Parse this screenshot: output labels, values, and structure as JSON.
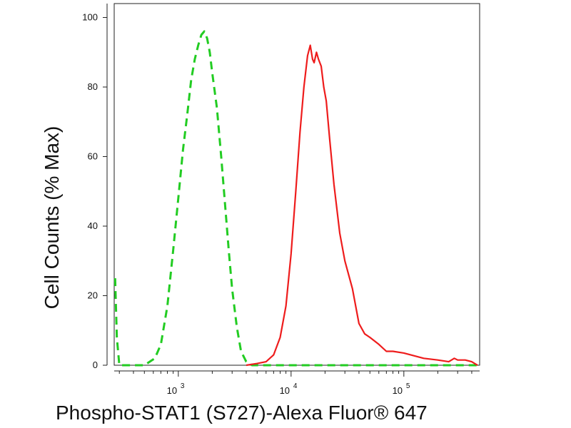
{
  "chart_data": {
    "type": "line",
    "xlabel": "Phospho-STAT1 (S727)-Alexa Fluor® 647",
    "ylabel": "Cell Counts (% Max)",
    "x_scale": "log",
    "xlim": [
      270,
      470000
    ],
    "ylim": [
      0,
      104
    ],
    "grid": false,
    "legend": "none",
    "y_ticks": [
      {
        "value": 0,
        "label": "0"
      },
      {
        "value": 20,
        "label": "20"
      },
      {
        "value": 40,
        "label": "40"
      },
      {
        "value": 60,
        "label": "60"
      },
      {
        "value": 80,
        "label": "80"
      },
      {
        "value": 100,
        "label": "100"
      }
    ],
    "x_ticks": [
      {
        "value": 1000,
        "base": "10",
        "exp": "3"
      },
      {
        "value": 10000,
        "base": "10",
        "exp": "4"
      },
      {
        "value": 100000,
        "base": "10",
        "exp": "5"
      }
    ],
    "series": [
      {
        "style": "dashed",
        "color": "#22cc22",
        "points": [
          [
            275,
            25
          ],
          [
            285,
            8
          ],
          [
            300,
            0
          ],
          [
            500,
            0
          ],
          [
            620,
            2
          ],
          [
            700,
            6
          ],
          [
            800,
            17
          ],
          [
            900,
            33
          ],
          [
            1000,
            48
          ],
          [
            1100,
            62
          ],
          [
            1200,
            72
          ],
          [
            1300,
            82
          ],
          [
            1400,
            88
          ],
          [
            1500,
            92
          ],
          [
            1600,
            95
          ],
          [
            1700,
            96
          ],
          [
            1800,
            94
          ],
          [
            1900,
            90
          ],
          [
            2000,
            84
          ],
          [
            2200,
            74
          ],
          [
            2400,
            60
          ],
          [
            2600,
            46
          ],
          [
            2800,
            33
          ],
          [
            3000,
            22
          ],
          [
            3300,
            11
          ],
          [
            3600,
            4
          ],
          [
            4000,
            1
          ],
          [
            4500,
            0
          ],
          [
            470000,
            0
          ]
        ]
      },
      {
        "style": "solid",
        "color": "#ee1c1c",
        "points": [
          [
            4000,
            0
          ],
          [
            5000,
            0.5
          ],
          [
            6000,
            1
          ],
          [
            7000,
            3
          ],
          [
            8000,
            8
          ],
          [
            9000,
            17
          ],
          [
            10000,
            32
          ],
          [
            11000,
            50
          ],
          [
            12000,
            67
          ],
          [
            13000,
            80
          ],
          [
            14000,
            89
          ],
          [
            14800,
            92
          ],
          [
            15500,
            88
          ],
          [
            16000,
            87
          ],
          [
            16800,
            90
          ],
          [
            17500,
            88
          ],
          [
            18500,
            86
          ],
          [
            19500,
            80
          ],
          [
            20500,
            76
          ],
          [
            22000,
            65
          ],
          [
            24000,
            52
          ],
          [
            27000,
            38
          ],
          [
            30000,
            30
          ],
          [
            35000,
            22
          ],
          [
            40000,
            12
          ],
          [
            45000,
            9
          ],
          [
            50000,
            8
          ],
          [
            60000,
            6
          ],
          [
            70000,
            4
          ],
          [
            80000,
            4
          ],
          [
            100000,
            3.5
          ],
          [
            150000,
            2
          ],
          [
            200000,
            1.5
          ],
          [
            250000,
            1
          ],
          [
            280000,
            2
          ],
          [
            300000,
            1.5
          ],
          [
            350000,
            1.5
          ],
          [
            400000,
            1
          ],
          [
            450000,
            0
          ]
        ]
      }
    ]
  }
}
